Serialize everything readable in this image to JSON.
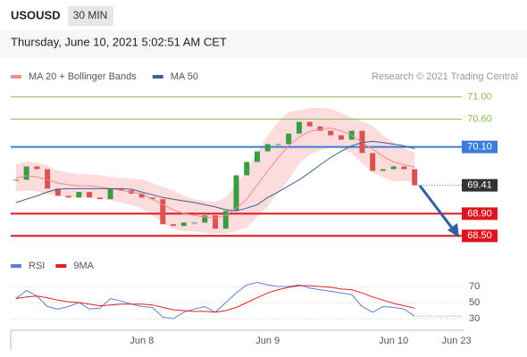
{
  "header": {
    "symbol": "USOUSD",
    "interval": "30 MIN",
    "timestamp": "Thursday, June 10, 2021 5:02:51 AM CET",
    "credit": "Research © 2021 Trading Central"
  },
  "chart_data": [
    {
      "type": "candlestick",
      "close": [
        69.51,
        69.75,
        69.7,
        69.35,
        69.22,
        69.19,
        69.29,
        69.19,
        69.16,
        69.35,
        69.32,
        69.26,
        69.19,
        69.16,
        68.71,
        68.68,
        68.74,
        68.74,
        68.87,
        68.63,
        68.95,
        69.59,
        69.83,
        70.02,
        70.15,
        70.15,
        70.34,
        70.55,
        70.47,
        70.39,
        70.31,
        70.23,
        70.39,
        69.99,
        69.67,
        69.7,
        69.75,
        69.7,
        69.41,
        null,
        null,
        null,
        null
      ],
      "up_color": "#3a9d45",
      "down_color": "#d9534f",
      "series": [
        {
          "name": "MA 20 + Bollinger Bands",
          "color": "#f28b8b",
          "band_color": "#fbd3d3",
          "values": [
            69.54,
            69.58,
            69.56,
            69.51,
            69.45,
            69.42,
            69.4,
            69.4,
            69.38,
            69.35,
            69.32,
            69.29,
            69.26,
            69.16,
            69.06,
            68.97,
            68.9,
            68.87,
            68.84,
            68.82,
            68.87,
            69.0,
            69.16,
            69.42,
            69.67,
            69.91,
            70.12,
            70.28,
            70.38,
            70.42,
            70.44,
            70.39,
            70.31,
            70.18,
            70.06,
            69.93,
            69.83,
            69.78,
            69.74,
            null,
            null,
            null,
            null
          ],
          "upper": [
            69.78,
            69.84,
            69.82,
            69.77,
            69.67,
            69.64,
            69.61,
            69.61,
            69.59,
            69.56,
            69.54,
            69.53,
            69.52,
            69.45,
            69.38,
            69.32,
            69.22,
            69.16,
            69.13,
            69.11,
            69.19,
            69.42,
            69.67,
            70.0,
            70.31,
            70.55,
            70.73,
            70.76,
            70.8,
            70.8,
            70.79,
            70.71,
            70.63,
            70.56,
            70.48,
            70.31,
            70.18,
            70.07,
            70.0,
            null,
            null,
            null,
            null
          ],
          "lower": [
            69.3,
            69.32,
            69.3,
            69.25,
            69.23,
            69.2,
            69.19,
            69.19,
            69.17,
            69.14,
            69.1,
            69.05,
            69.0,
            68.87,
            68.74,
            68.62,
            68.58,
            68.58,
            68.55,
            68.53,
            68.55,
            68.58,
            68.65,
            68.84,
            69.03,
            69.27,
            69.51,
            69.8,
            69.96,
            70.04,
            70.09,
            70.07,
            69.99,
            69.8,
            69.64,
            69.55,
            69.48,
            69.49,
            69.48,
            null,
            null,
            null,
            null
          ]
        },
        {
          "name": "MA 50",
          "color": "#3d5f95",
          "values": [
            69.1,
            69.16,
            69.22,
            69.29,
            69.34,
            69.35,
            69.35,
            69.35,
            69.35,
            69.35,
            69.35,
            69.34,
            69.29,
            69.24,
            69.19,
            69.16,
            69.13,
            69.1,
            69.06,
            69.02,
            68.97,
            68.95,
            69.0,
            69.06,
            69.19,
            69.29,
            69.4,
            69.51,
            69.64,
            69.78,
            69.91,
            70.02,
            70.12,
            70.18,
            70.2,
            70.18,
            70.15,
            70.12,
            70.07,
            null,
            null,
            null,
            null
          ]
        }
      ],
      "levels": [
        {
          "value": 71,
          "label": "71.00",
          "color": "#8cc152",
          "boxed": false,
          "line": true
        },
        {
          "value": 70.6,
          "label": "70.60",
          "color": "#8cc152",
          "boxed": false,
          "line": true
        },
        {
          "value": 70.1,
          "label": "70.10",
          "color": "#3b7dd8",
          "boxed": true,
          "line": true
        },
        {
          "value": 69.41,
          "label": "69.41",
          "color": "#333333",
          "boxed": true,
          "line": false
        },
        {
          "value": 68.9,
          "label": "68.90",
          "color": "#e0141e",
          "boxed": true,
          "line": true
        },
        {
          "value": 68.5,
          "label": "68.50",
          "color": "#e0141e",
          "boxed": true,
          "line": true
        }
      ],
      "ylim": [
        68.2,
        71.25
      ]
    },
    {
      "type": "line",
      "categories": [
        null,
        null,
        null,
        null,
        null,
        null,
        null,
        null,
        null,
        null,
        null,
        null,
        "Jun 8",
        null,
        null,
        null,
        null,
        null,
        null,
        null,
        null,
        null,
        null,
        null,
        "Jun 9",
        null,
        null,
        null,
        null,
        null,
        null,
        null,
        null,
        null,
        null,
        null,
        "Jun 10",
        null,
        null,
        null,
        null,
        null,
        "Jun 23"
      ],
      "series": [
        {
          "name": "RSI",
          "color": "#5b7fd6",
          "values": [
            55,
            65,
            58,
            45,
            42,
            45,
            50,
            42,
            43,
            55,
            52,
            48,
            45,
            44,
            32,
            30,
            38,
            42,
            45,
            38,
            50,
            62,
            72,
            75,
            72,
            70,
            70,
            72,
            68,
            66,
            64,
            62,
            60,
            45,
            38,
            45,
            44,
            42,
            33,
            null,
            null,
            null,
            null
          ]
        },
        {
          "name": "9MA",
          "color": "#e02020",
          "values": [
            55,
            57,
            58,
            56,
            53,
            51,
            50,
            48,
            46,
            47,
            48,
            48,
            48,
            47,
            44,
            41,
            40,
            39,
            39,
            38,
            40,
            44,
            50,
            56,
            62,
            66,
            69,
            71,
            71,
            70,
            69,
            67,
            66,
            62,
            57,
            53,
            49,
            46,
            43,
            null,
            null,
            null,
            null
          ]
        }
      ],
      "ylim": [
        20,
        80
      ],
      "yticks": [
        30,
        50,
        70
      ]
    }
  ]
}
